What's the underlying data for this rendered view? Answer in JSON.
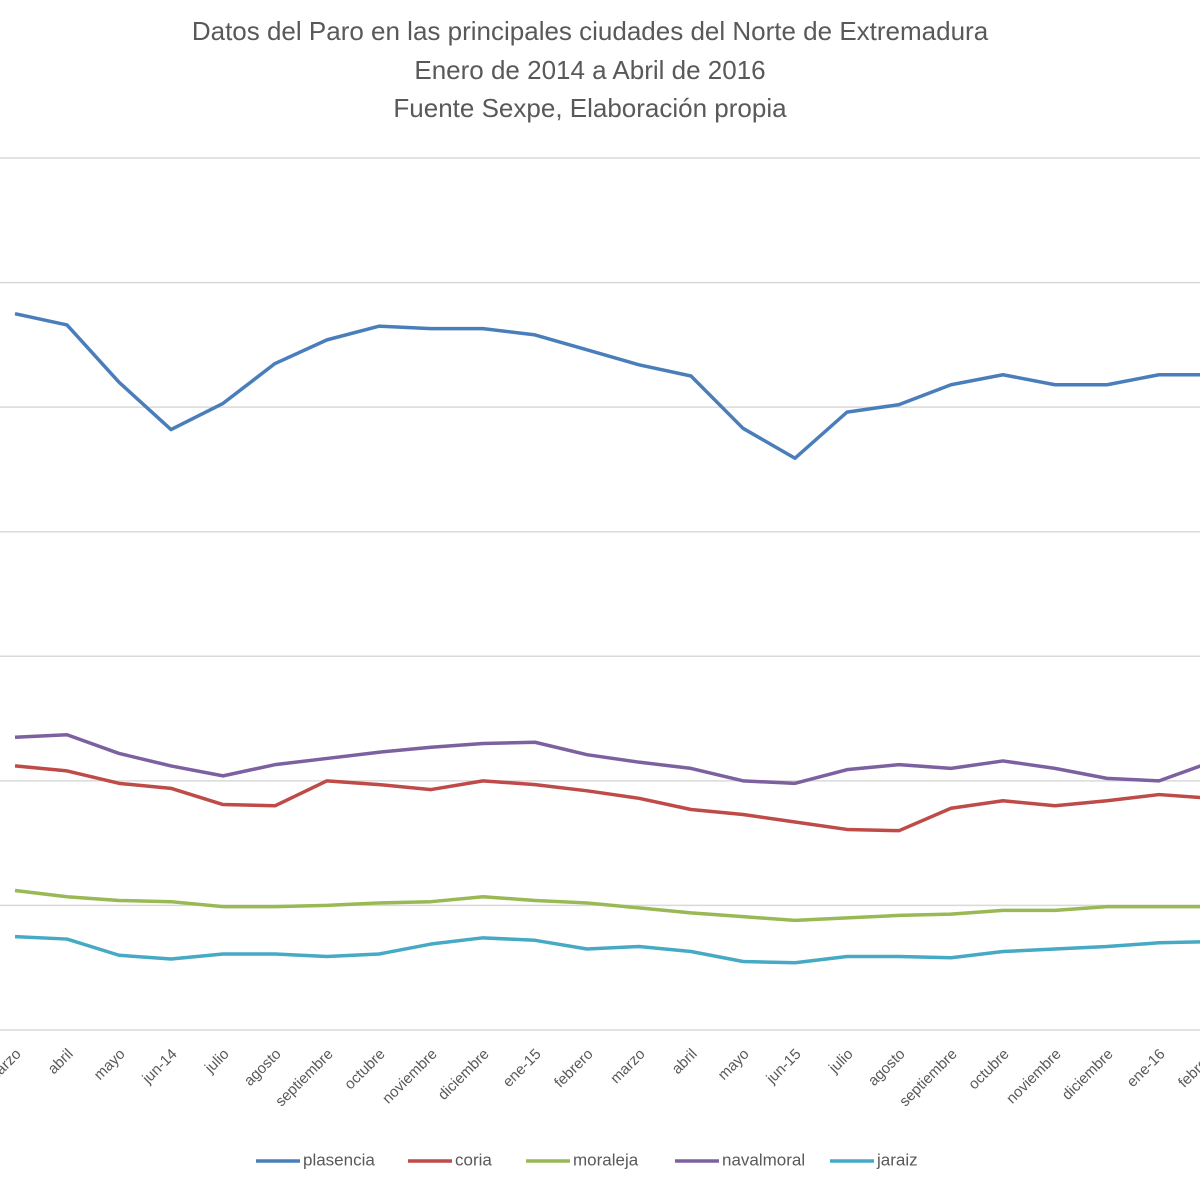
{
  "chart_data": {
    "type": "line",
    "title": "Datos del Paro en las principales ciudades del Norte de Extremadura",
    "subtitle": "Enero de 2014 a Abril de 2016",
    "source": "Fuente Sexpe, Elaboración propia",
    "categories": [
      "marzo",
      "abril",
      "mayo",
      "jun-14",
      "julio",
      "agosto",
      "septiembre",
      "octubre",
      "noviembre",
      "diciembre",
      "ene-15",
      "febrero",
      "marzo",
      "abril",
      "mayo",
      "jun-15",
      "julio",
      "agosto",
      "septiembre",
      "octubre",
      "noviembre",
      "diciembre",
      "ene-16",
      "febrero"
    ],
    "series": [
      {
        "name": "plasencia",
        "color": "#4a7ebb",
        "values": [
          5750,
          5660,
          5200,
          4820,
          5030,
          5350,
          5540,
          5650,
          5630,
          5630,
          5580,
          5460,
          5340,
          5250,
          4830,
          4590,
          4960,
          5020,
          5180,
          5260,
          5180,
          5180,
          5260,
          5260
        ]
      },
      {
        "name": "coria",
        "color": "#be4b48",
        "values": [
          2120,
          2080,
          1980,
          1940,
          1810,
          1800,
          2000,
          1970,
          1930,
          2000,
          1970,
          1920,
          1860,
          1770,
          1730,
          1670,
          1610,
          1600,
          1780,
          1840,
          1800,
          1840,
          1890,
          1860
        ]
      },
      {
        "name": "moraleja",
        "color": "#98b954",
        "values": [
          1120,
          1070,
          1040,
          1030,
          990,
          990,
          1000,
          1020,
          1030,
          1070,
          1040,
          1020,
          980,
          940,
          910,
          880,
          900,
          920,
          930,
          960,
          960,
          990,
          990,
          990
        ]
      },
      {
        "name": "navalmoral",
        "color": "#7d60a0",
        "values": [
          2350,
          2370,
          2220,
          2120,
          2040,
          2130,
          2180,
          2230,
          2270,
          2300,
          2310,
          2210,
          2150,
          2100,
          2000,
          1980,
          2090,
          2130,
          2100,
          2160,
          2100,
          2020,
          2000,
          2150
        ]
      },
      {
        "name": "jaraiz",
        "color": "#46aac5",
        "values": [
          750,
          730,
          600,
          570,
          610,
          610,
          590,
          610,
          690,
          740,
          720,
          650,
          670,
          630,
          550,
          540,
          590,
          590,
          580,
          630,
          650,
          670,
          700,
          710
        ]
      }
    ],
    "ylim": [
      0,
      7000
    ],
    "yticks": [
      0,
      1000,
      2000,
      3000,
      4000,
      5000,
      6000,
      7000
    ],
    "grid": true
  }
}
